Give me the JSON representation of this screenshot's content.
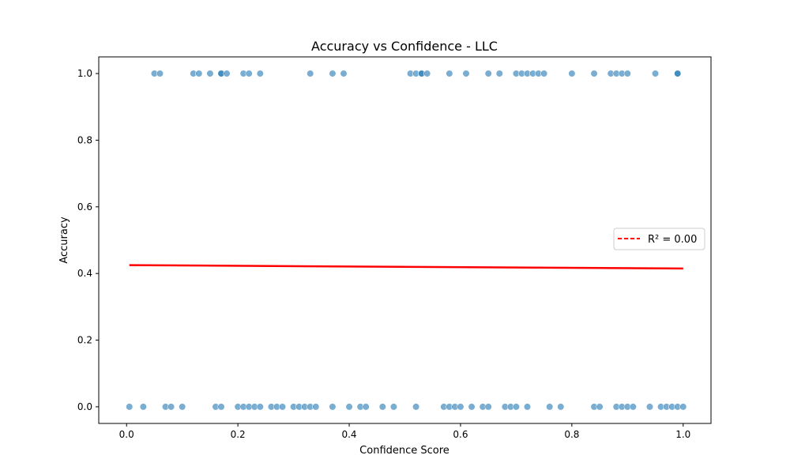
{
  "chart_data": {
    "type": "scatter",
    "title": "Accuracy vs Confidence - LLC",
    "xlabel": "Confidence Score",
    "ylabel": "Accuracy",
    "xlim": [
      -0.05,
      1.05
    ],
    "ylim": [
      -0.05,
      1.05
    ],
    "xticks": [
      "0.0",
      "0.2",
      "0.4",
      "0.6",
      "0.8",
      "1.0"
    ],
    "xtick_values": [
      0.0,
      0.2,
      0.4,
      0.6,
      0.8,
      1.0
    ],
    "yticks": [
      "0.0",
      "0.2",
      "0.4",
      "0.6",
      "0.8",
      "1.0"
    ],
    "ytick_values": [
      0.0,
      0.2,
      0.4,
      0.6,
      0.8,
      1.0
    ],
    "grid": false,
    "legend_position": "right",
    "colors": {
      "points": "#1f77b4",
      "fit_line": "#ff0000"
    },
    "points": {
      "x_at_1": [
        0.05,
        0.06,
        0.12,
        0.13,
        0.15,
        0.17,
        0.17,
        0.18,
        0.21,
        0.22,
        0.24,
        0.33,
        0.37,
        0.39,
        0.51,
        0.52,
        0.53,
        0.53,
        0.54,
        0.58,
        0.61,
        0.65,
        0.67,
        0.7,
        0.71,
        0.72,
        0.73,
        0.74,
        0.75,
        0.8,
        0.84,
        0.87,
        0.88,
        0.89,
        0.9,
        0.95,
        0.99,
        0.99
      ],
      "x_at_0": [
        0.005,
        0.03,
        0.07,
        0.08,
        0.1,
        0.16,
        0.17,
        0.2,
        0.21,
        0.22,
        0.23,
        0.24,
        0.26,
        0.27,
        0.28,
        0.3,
        0.31,
        0.32,
        0.33,
        0.34,
        0.37,
        0.4,
        0.42,
        0.43,
        0.46,
        0.48,
        0.52,
        0.57,
        0.58,
        0.59,
        0.6,
        0.62,
        0.64,
        0.65,
        0.68,
        0.69,
        0.7,
        0.72,
        0.76,
        0.78,
        0.84,
        0.85,
        0.88,
        0.89,
        0.9,
        0.91,
        0.94,
        0.96,
        0.97,
        0.98,
        0.99,
        1.0
      ]
    },
    "fit_line": {
      "name": "R² = 0.00",
      "x": [
        0.005,
        1.0
      ],
      "y": [
        0.425,
        0.415
      ]
    }
  }
}
